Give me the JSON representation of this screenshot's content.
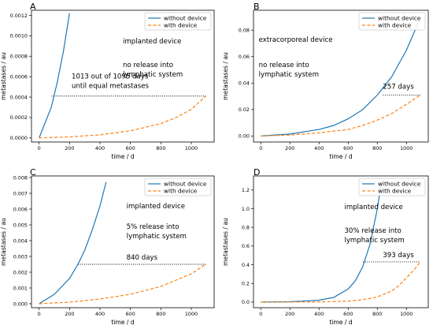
{
  "chart_data": [
    {
      "type": "line",
      "panel_label": "A",
      "xlabel": "time / d",
      "ylabel": "metastases / au",
      "xlim": [
        -50,
        1150
      ],
      "ylim": [
        -4e-05,
        0.00125
      ],
      "xticks": [
        0,
        200,
        400,
        600,
        800,
        1000
      ],
      "yticks": [
        0,
        0.0002,
        0.0004,
        0.0006,
        0.0008,
        0.001,
        0.0012
      ],
      "ytick_labels": [
        "0.0000",
        "0.0002",
        "0.0004",
        "0.0006",
        "0.0008",
        "0.0010",
        "0.0012"
      ],
      "legend_position": "top-right",
      "series": [
        {
          "name": "without device",
          "color": "#1f77b4",
          "style": "solid",
          "x": [
            0,
            40,
            80,
            120,
            160,
            200
          ],
          "y": [
            0,
            0.00015,
            0.0003,
            0.00055,
            0.00085,
            0.00122
          ]
        },
        {
          "name": "with device",
          "color": "#ff7f0e",
          "style": "dashed",
          "x": [
            0,
            200,
            400,
            600,
            800,
            900,
            1000,
            1095
          ],
          "y": [
            0,
            1e-05,
            3e-05,
            7e-05,
            0.00014,
            0.0002,
            0.00028,
            0.00041
          ]
        }
      ],
      "annotations": [
        "implanted device",
        "no release into",
        "lymphatic system"
      ],
      "delay_line": {
        "x1": 82,
        "x2": 1095,
        "y": 0.00041,
        "label_lines": [
          "1013 out of 1095 days",
          "until equal metastases"
        ]
      }
    },
    {
      "type": "line",
      "panel_label": "B",
      "xlabel": "time / d",
      "ylabel": "metastases / au",
      "xlim": [
        -50,
        1150
      ],
      "ylim": [
        -0.0045,
        0.095
      ],
      "xticks": [
        0,
        200,
        400,
        600,
        800,
        1000
      ],
      "yticks": [
        0,
        0.02,
        0.04,
        0.06,
        0.08
      ],
      "ytick_labels": [
        "0.00",
        "0.02",
        "0.04",
        "0.06",
        "0.08"
      ],
      "legend_position": "top-right",
      "series": [
        {
          "name": "without device",
          "color": "#1f77b4",
          "style": "solid",
          "x": [
            0,
            200,
            400,
            500,
            600,
            700,
            800,
            900,
            1000,
            1095
          ],
          "y": [
            0,
            0.0015,
            0.005,
            0.008,
            0.013,
            0.02,
            0.031,
            0.045,
            0.065,
            0.089
          ]
        },
        {
          "name": "with device",
          "color": "#ff7f0e",
          "style": "dashed",
          "x": [
            0,
            200,
            400,
            600,
            700,
            800,
            900,
            1000,
            1095
          ],
          "y": [
            0,
            0.0008,
            0.0025,
            0.005,
            0.008,
            0.012,
            0.017,
            0.024,
            0.031
          ]
        }
      ],
      "annotations": [
        "extracorporeal device",
        "no release into",
        "lymphatic system"
      ],
      "delay_line": {
        "x1": 838,
        "x2": 1095,
        "y": 0.031,
        "label_lines": [
          "257 days"
        ]
      }
    },
    {
      "type": "line",
      "panel_label": "C",
      "xlabel": "time / d",
      "ylabel": "metastases / au",
      "xlim": [
        -50,
        1150
      ],
      "ylim": [
        -0.00025,
        0.0081
      ],
      "xticks": [
        0,
        200,
        400,
        600,
        800,
        1000
      ],
      "yticks": [
        0,
        0.001,
        0.002,
        0.003,
        0.004,
        0.005,
        0.006,
        0.007,
        0.008
      ],
      "ytick_labels": [
        "0.000",
        "0.001",
        "0.002",
        "0.003",
        "0.004",
        "0.005",
        "0.006",
        "0.007",
        "0.008"
      ],
      "legend_position": "top-right",
      "series": [
        {
          "name": "without device",
          "color": "#1f77b4",
          "style": "solid",
          "x": [
            0,
            100,
            200,
            255,
            300,
            350,
            400,
            440
          ],
          "y": [
            0,
            0.0006,
            0.0016,
            0.0025,
            0.0034,
            0.0047,
            0.0062,
            0.0077
          ]
        },
        {
          "name": "with device",
          "color": "#ff7f0e",
          "style": "dashed",
          "x": [
            0,
            200,
            400,
            600,
            800,
            900,
            1000,
            1095
          ],
          "y": [
            0,
            0.0001,
            0.0003,
            0.0006,
            0.0011,
            0.0015,
            0.0019,
            0.0025
          ]
        }
      ],
      "annotations": [
        "implanted device",
        "5% release into",
        "lymphatic system"
      ],
      "delay_line": {
        "x1": 255,
        "x2": 1095,
        "y": 0.0025,
        "label_lines": [
          "840 days"
        ]
      }
    },
    {
      "type": "line",
      "panel_label": "D",
      "xlabel": "time / d",
      "ylabel": "metastases / au",
      "xlim": [
        -50,
        1150
      ],
      "ylim": [
        -0.06,
        1.35
      ],
      "xticks": [
        0,
        200,
        400,
        600,
        800,
        1000
      ],
      "yticks": [
        0,
        0.2,
        0.4,
        0.6,
        0.8,
        1.0,
        1.2
      ],
      "ytick_labels": [
        "0.0",
        "0.2",
        "0.4",
        "0.6",
        "0.8",
        "1.0",
        "1.2"
      ],
      "legend_position": "top-right",
      "series": [
        {
          "name": "without device",
          "color": "#1f77b4",
          "style": "solid",
          "x": [
            0,
            200,
            400,
            500,
            600,
            650,
            700,
            750,
            800,
            830
          ],
          "y": [
            0,
            0.003,
            0.02,
            0.05,
            0.14,
            0.23,
            0.38,
            0.62,
            1.0,
            1.3
          ]
        },
        {
          "name": "with device",
          "color": "#ff7f0e",
          "style": "dashed",
          "x": [
            0,
            400,
            600,
            700,
            800,
            900,
            950,
            1000,
            1050,
            1095
          ],
          "y": [
            0,
            0.002,
            0.01,
            0.025,
            0.055,
            0.12,
            0.18,
            0.26,
            0.34,
            0.43
          ]
        }
      ],
      "annotations": [
        "implanted device",
        "30% release into",
        "lymphatic system"
      ],
      "delay_line": {
        "x1": 702,
        "x2": 1095,
        "y": 0.43,
        "label_lines": [
          "393 days"
        ]
      }
    }
  ]
}
